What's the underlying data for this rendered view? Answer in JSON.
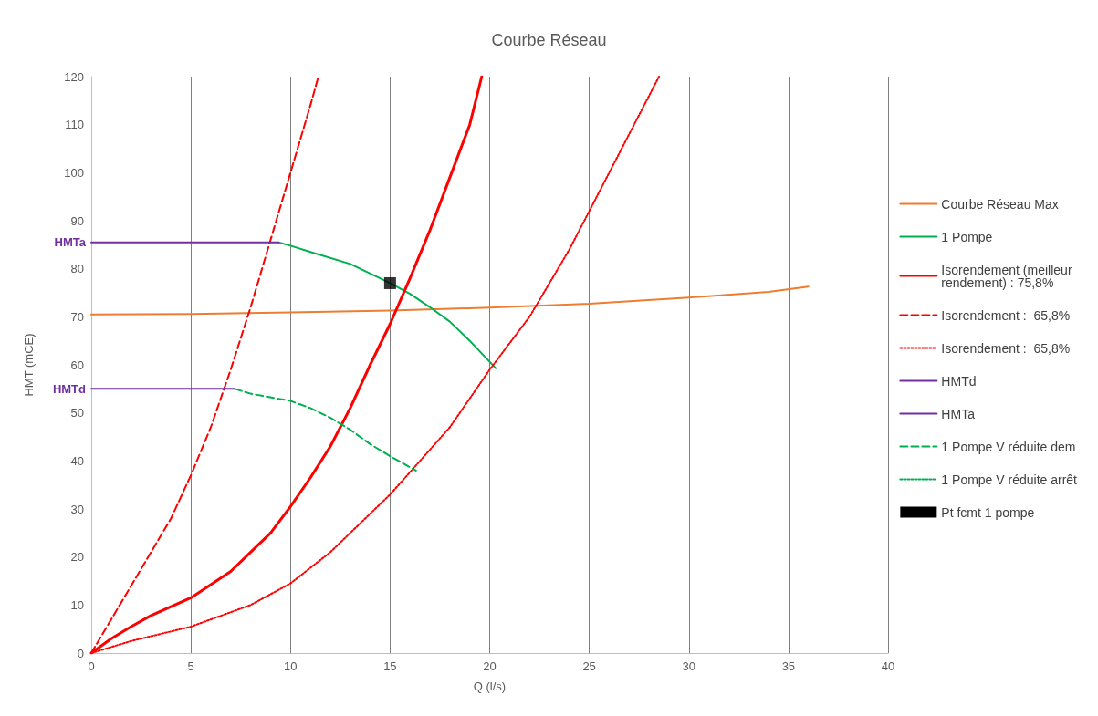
{
  "chart_data": {
    "type": "line",
    "title": "Courbe Réseau",
    "xlabel": "Q (l/s)",
    "ylabel": "HMT (mCE)",
    "xlim": [
      0,
      40
    ],
    "xticks": [
      0,
      5,
      10,
      15,
      20,
      25,
      30,
      35,
      40
    ],
    "ylim": [
      0,
      120
    ],
    "yticks": [
      0,
      10,
      20,
      30,
      40,
      50,
      60,
      70,
      80,
      90,
      100,
      110,
      120
    ],
    "grid": "x",
    "legend": "right",
    "marker": "none",
    "annotations": [
      {
        "text": "HMTa",
        "x": 0,
        "y": 85.5
      },
      {
        "text": "HMTd",
        "x": 0,
        "y": 55
      }
    ],
    "series": [
      {
        "name": "Courbe Réseau Max",
        "color": "#ed7d31",
        "line_style": "solid",
        "x": [
          0,
          5,
          10,
          15,
          20,
          25,
          30,
          34,
          36
        ],
        "values": [
          70.5,
          70.6,
          70.9,
          71.3,
          71.9,
          72.7,
          74,
          75.2,
          76.3
        ]
      },
      {
        "name": "1 Pompe",
        "color": "#00b050",
        "line_style": "solid",
        "x": [
          9.4,
          10,
          11,
          13,
          14,
          15,
          16,
          17,
          18,
          19,
          20.3
        ],
        "values": [
          85.5,
          84.8,
          83.5,
          81,
          79,
          77,
          74.8,
          72,
          69,
          65,
          59.3
        ]
      },
      {
        "name": "Isorendement (meilleur rendement) : 75,8%",
        "color": "#ff0000",
        "line_style": "solid",
        "x": [
          0,
          1,
          2,
          3,
          5,
          7,
          8,
          9,
          10,
          11,
          12,
          13,
          14,
          15,
          16,
          17,
          18,
          19,
          19.6
        ],
        "values": [
          0,
          3,
          5.5,
          7.8,
          11.5,
          17,
          21,
          25,
          30.5,
          36.5,
          43,
          51,
          60,
          68.5,
          78,
          88,
          99,
          110,
          120
        ]
      },
      {
        "name": "Isorendement :  65,8%",
        "color": "#ff0000",
        "line_style": "dashed",
        "x": [
          0,
          1,
          2,
          3,
          4,
          5,
          6,
          7,
          8,
          9,
          10,
          11,
          11.4
        ],
        "values": [
          0,
          7,
          14,
          21,
          28,
          37,
          47,
          59,
          72,
          86,
          100,
          114,
          120
        ]
      },
      {
        "name": "Isorendement :  65,8%",
        "color": "#ff0000",
        "line_style": "dotted",
        "x": [
          0,
          2,
          5,
          8,
          10,
          12,
          15,
          18,
          20,
          22,
          24,
          26,
          28.5
        ],
        "values": [
          0,
          2.5,
          5.5,
          10,
          14.5,
          21,
          33,
          47,
          59,
          70,
          84,
          100,
          120
        ]
      },
      {
        "name": "HMTd",
        "color": "#7030a0",
        "line_style": "solid",
        "x": [
          0,
          7.2
        ],
        "values": [
          55,
          55
        ]
      },
      {
        "name": "HMTa",
        "color": "#7030a0",
        "line_style": "solid",
        "x": [
          0,
          9.4
        ],
        "values": [
          85.5,
          85.5
        ]
      },
      {
        "name": "1 Pompe V réduite dem",
        "color": "#00b050",
        "line_style": "dashed",
        "x": [
          7.2,
          8,
          10,
          11,
          12,
          13,
          14,
          15,
          16.3
        ],
        "values": [
          55,
          54,
          52.5,
          51,
          49,
          46.5,
          43.5,
          41,
          38
        ]
      },
      {
        "name": "1 Pompe V réduite arrêt",
        "color": "#00b050",
        "line_style": "dotted"
      },
      {
        "name": "Pt fcmt 1 pompe",
        "type": "scatter",
        "marker": "square",
        "color": "#000000",
        "x": [
          15
        ],
        "values": [
          77
        ]
      }
    ]
  }
}
